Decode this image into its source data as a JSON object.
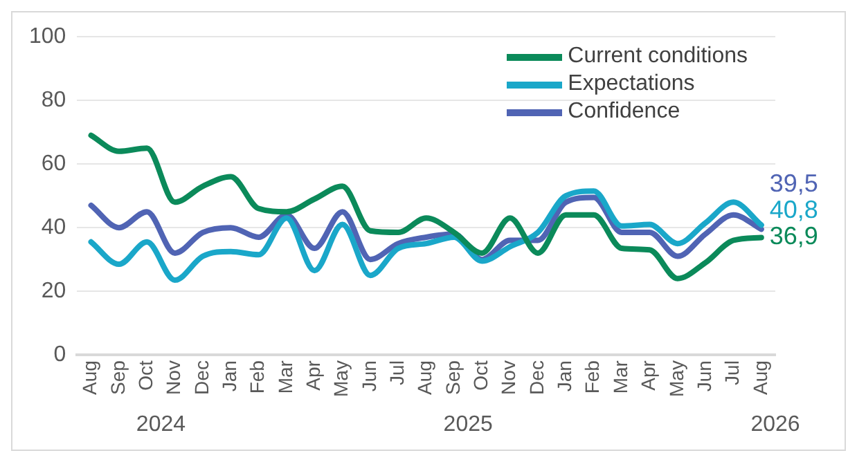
{
  "chart_data": {
    "type": "line",
    "categories": [
      "Aug",
      "Sep",
      "Oct",
      "Nov",
      "Dec",
      "Jan",
      "Feb",
      "Mar",
      "Apr",
      "May",
      "Jun",
      "Jul",
      "Aug",
      "Sep",
      "Oct",
      "Nov",
      "Dec",
      "Jan",
      "Feb",
      "Mar",
      "Apr",
      "May",
      "Jun",
      "Jul",
      "Aug"
    ],
    "annotations": [
      "2024",
      "2025",
      "2026"
    ],
    "series": [
      {
        "name": "Current conditions",
        "color": "#0b8a5a",
        "values": [
          69,
          64,
          65,
          48,
          53,
          56,
          46,
          45,
          49,
          53,
          39,
          38.5,
          43,
          38.5,
          32,
          43,
          32,
          44,
          44,
          33.5,
          33,
          24,
          29,
          36,
          36.9
        ],
        "value_labels": [
          null,
          null,
          null,
          null,
          null,
          null,
          null,
          null,
          null,
          null,
          null,
          null,
          null,
          null,
          null,
          null,
          null,
          null,
          null,
          null,
          null,
          null,
          null,
          null,
          "36,9"
        ]
      },
      {
        "name": "Expectations",
        "color": "#1aa7c9",
        "values": [
          35.5,
          28.5,
          35.5,
          23.5,
          31,
          32.5,
          31.5,
          43,
          26.5,
          41,
          25,
          33.5,
          35,
          37,
          29.5,
          34,
          38.5,
          50,
          51.5,
          40.5,
          41,
          35,
          41.5,
          48,
          40.8
        ],
        "value_labels": [
          null,
          null,
          null,
          null,
          null,
          null,
          null,
          null,
          null,
          null,
          null,
          null,
          null,
          null,
          null,
          null,
          null,
          null,
          null,
          null,
          null,
          null,
          null,
          null,
          "40,8"
        ]
      },
      {
        "name": "Confidence",
        "color": "#5064b4",
        "values": [
          47,
          40,
          45,
          32,
          38.5,
          40,
          37,
          44,
          33.5,
          45,
          30,
          35,
          37,
          38,
          30,
          36,
          36,
          48,
          49.5,
          38.5,
          38.5,
          31,
          38,
          44,
          39.5
        ],
        "value_labels": [
          null,
          null,
          null,
          null,
          null,
          null,
          null,
          null,
          null,
          null,
          null,
          null,
          null,
          null,
          null,
          null,
          null,
          null,
          null,
          null,
          null,
          null,
          null,
          null,
          "39,5"
        ]
      }
    ],
    "ylim": [
      0,
      100
    ],
    "yticks": [
      0,
      20,
      40,
      60,
      80,
      100
    ],
    "grid": "y",
    "legend": "top right",
    "marker": "none",
    "line_style": "solid"
  }
}
